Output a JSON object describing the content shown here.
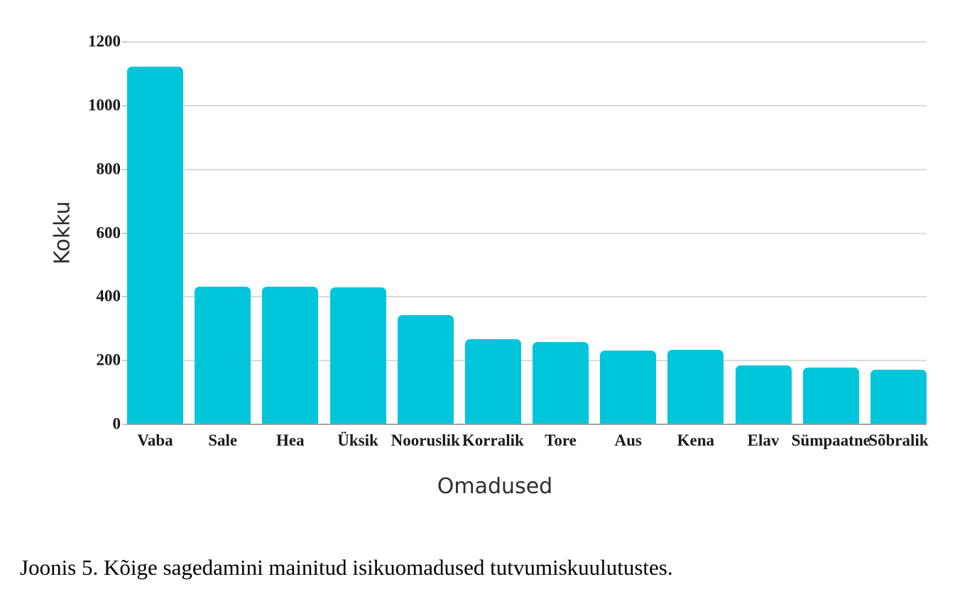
{
  "chart_data": {
    "type": "bar",
    "categories": [
      "Vaba",
      "Sale",
      "Hea",
      "Üksik",
      "Nooruslik",
      "Korralik",
      "Tore",
      "Aus",
      "Kena",
      "Elav",
      "Sümpaatne",
      "Sõbralik"
    ],
    "values": [
      1120,
      430,
      429,
      427,
      340,
      265,
      256,
      230,
      232,
      182,
      176,
      170
    ],
    "title": "",
    "xlabel": "Omadused",
    "ylabel": "Kokku",
    "ylim": [
      0,
      1200
    ],
    "yticks": [
      0,
      200,
      400,
      600,
      800,
      1000,
      1200
    ],
    "grid": true,
    "legend": "none",
    "bar_color": "#00C5DB"
  },
  "caption": "Joonis 5. Kõige sagedamini mainitud isikuomadused tutvumiskuulutustes.",
  "colors": {
    "bar": "#00C5DB",
    "gridline": "#DBDBDB",
    "zero_line": "#A3A3A3",
    "label_text": "#1A1A1A",
    "axis_title_text": "#2E2E2E",
    "background": "#FFFFFF"
  }
}
